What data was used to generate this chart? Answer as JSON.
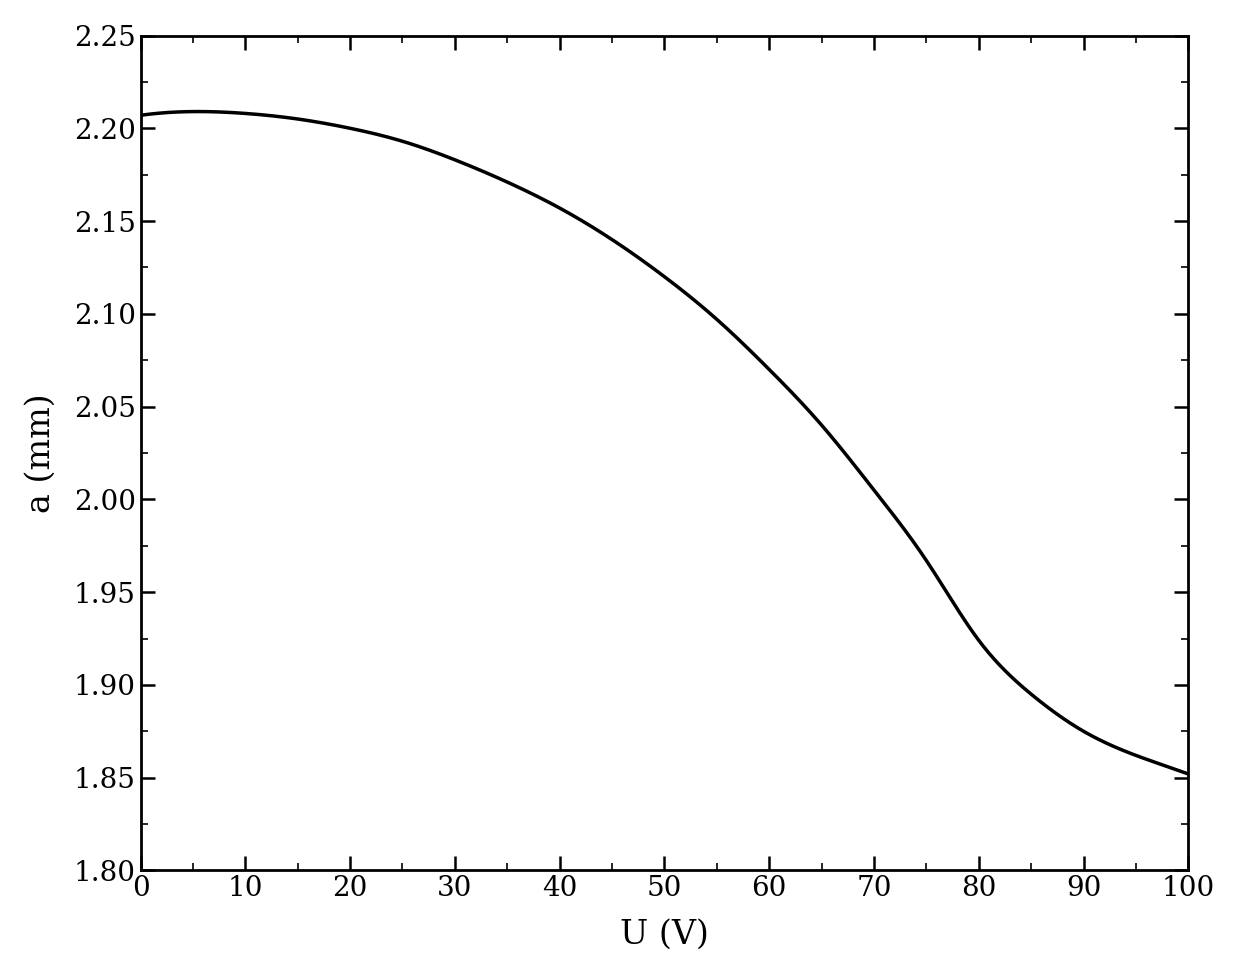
{
  "xlabel": "U (V)",
  "ylabel": "a (mm)",
  "xlim": [
    0,
    100
  ],
  "ylim": [
    1.8,
    2.25
  ],
  "xticks": [
    0,
    10,
    20,
    30,
    40,
    50,
    60,
    70,
    80,
    90,
    100
  ],
  "yticks": [
    1.8,
    1.85,
    1.9,
    1.95,
    2.0,
    2.05,
    2.1,
    2.15,
    2.2,
    2.25
  ],
  "line_color": "#000000",
  "line_width": 2.5,
  "background_color": "#ffffff",
  "xlabel_fontsize": 24,
  "ylabel_fontsize": 24,
  "tick_fontsize": 20,
  "spine_linewidth": 2.0,
  "curve_points_U": [
    0,
    5,
    10,
    15,
    20,
    25,
    30,
    35,
    40,
    45,
    50,
    55,
    60,
    65,
    70,
    75,
    80,
    85,
    90,
    95,
    100
  ],
  "curve_points_a": [
    2.207,
    2.209,
    2.208,
    2.205,
    2.2,
    2.193,
    2.183,
    2.171,
    2.157,
    2.14,
    2.12,
    2.097,
    2.07,
    2.04,
    2.005,
    1.967,
    1.924,
    1.895,
    1.875,
    1.862,
    1.852
  ]
}
